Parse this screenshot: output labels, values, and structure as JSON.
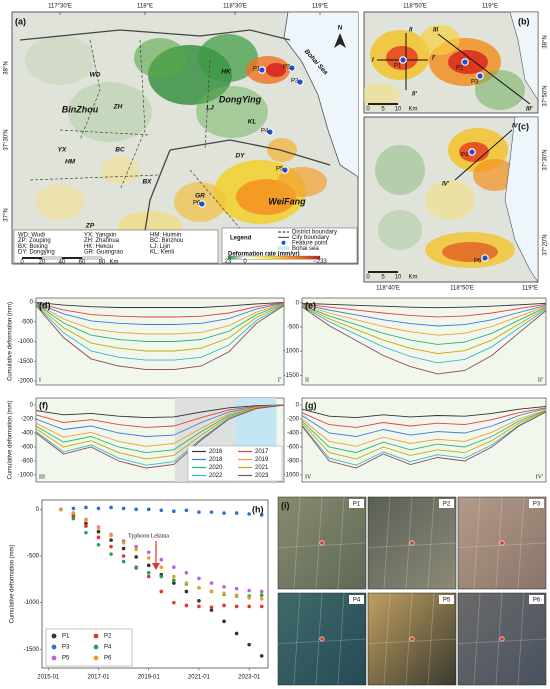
{
  "map_a": {
    "label": "(a)",
    "lon_labels": [
      "117°30'E",
      "118°E",
      "118°30'E",
      "119°E"
    ],
    "lat_labels": [
      "38°N",
      "37°30'N",
      "37°N"
    ],
    "north": "N",
    "places": [
      "WD",
      "BinZhou",
      "ZH",
      "YX",
      "BC",
      "HM",
      "BX",
      "ZP",
      "GR",
      "WeiFang",
      "DongYing",
      "HK",
      "LJ",
      "KL",
      "DY",
      "Bohai Sea"
    ],
    "points": [
      "P1",
      "P2",
      "P3",
      "P4",
      "P5",
      "P6"
    ],
    "abbreviations": [
      "WD: Wudi",
      "YX: Yangxin",
      "HM: Huimin",
      "ZP: Zouping",
      "ZH: Zhanhua",
      "BC: Binzhou",
      "BX: Boxing",
      "HK: Hekou",
      "LJ: Lijin",
      "DY: Dongying",
      "GR: Guangrao",
      "KL: Kenli"
    ],
    "scale": [
      "0",
      "20",
      "40",
      "60",
      "80",
      "Km"
    ],
    "legend": {
      "title": "Legend",
      "items": [
        "District boundary",
        "City boundary",
        "Feature point",
        "Bohai sea"
      ],
      "colorbar_title": "Deformation rate (mm/yr)",
      "colorbar_labels": [
        "23",
        "0",
        "−233"
      ]
    }
  },
  "map_b": {
    "label": "(b)",
    "lon_labels": [
      "118°50'E",
      "119°E"
    ],
    "lat_labels": [
      "38°N",
      "37°50'N"
    ],
    "profile_labels": [
      "I",
      "I'",
      "II",
      "II'",
      "III",
      "III'"
    ],
    "points": [
      "P1",
      "P2",
      "P3"
    ],
    "scale": [
      "0",
      "5",
      "10",
      "Km"
    ]
  },
  "map_c": {
    "label": "(c)",
    "lon_labels": [
      "118°40'E",
      "118°50'E",
      "119°E"
    ],
    "lat_labels": [
      "37°30'N",
      "37°20'N"
    ],
    "profile_labels": [
      "IV",
      "IV'"
    ],
    "points": [
      "P4",
      "P6"
    ],
    "scale": [
      "0",
      "5",
      "10",
      "Km"
    ]
  },
  "chart_data": [
    {
      "type": "line",
      "label": "(d)",
      "y_label": "Cumulative deformation (mm)",
      "categories": [
        "I",
        null,
        null,
        null,
        null,
        null,
        null,
        null,
        null,
        "I'"
      ],
      "ylim": [
        -2100,
        100
      ],
      "yticks": [
        0,
        -500,
        -1000,
        -1500,
        -2000
      ],
      "series": [
        {
          "color": "#333333",
          "values": [
            -10,
            -80,
            -120,
            -140,
            -140,
            -140,
            -140,
            -100,
            -50,
            -10
          ]
        },
        {
          "color": "#e8413a",
          "values": [
            -20,
            -200,
            -320,
            -360,
            -380,
            -380,
            -360,
            -280,
            -120,
            -20
          ]
        },
        {
          "color": "#3a7bd5",
          "values": [
            -30,
            -300,
            -480,
            -540,
            -570,
            -570,
            -540,
            -420,
            -180,
            -30
          ]
        },
        {
          "color": "#f0a030",
          "values": [
            -40,
            -430,
            -680,
            -770,
            -810,
            -810,
            -770,
            -600,
            -260,
            -40
          ]
        },
        {
          "color": "#2bb673",
          "values": [
            -50,
            -530,
            -840,
            -950,
            -1000,
            -1000,
            -950,
            -740,
            -320,
            -50
          ]
        },
        {
          "color": "#c9a800",
          "values": [
            -70,
            -650,
            -1040,
            -1170,
            -1240,
            -1240,
            -1170,
            -910,
            -390,
            -70
          ]
        },
        {
          "color": "#3bb8c8",
          "values": [
            -80,
            -780,
            -1240,
            -1400,
            -1470,
            -1470,
            -1400,
            -1090,
            -470,
            -80
          ]
        },
        {
          "color": "#8b4a5a",
          "values": [
            -90,
            -900,
            -1440,
            -1620,
            -1710,
            -1710,
            -1620,
            -1260,
            -540,
            -90
          ]
        }
      ]
    },
    {
      "type": "line",
      "label": "(e)",
      "categories": [
        "II",
        null,
        null,
        null,
        null,
        null,
        null,
        null,
        null,
        "II'"
      ],
      "ylim": [
        -1700,
        100
      ],
      "yticks": [
        0,
        -500,
        -1000,
        -1500
      ],
      "series": [
        {
          "color": "#333333",
          "values": [
            -10,
            -30,
            -50,
            -70,
            -90,
            -100,
            -90,
            -70,
            -40,
            -10
          ]
        },
        {
          "color": "#e8413a",
          "values": [
            -20,
            -90,
            -150,
            -210,
            -260,
            -290,
            -270,
            -210,
            -120,
            -30
          ]
        },
        {
          "color": "#3a7bd5",
          "values": [
            -30,
            -150,
            -250,
            -350,
            -430,
            -480,
            -450,
            -350,
            -200,
            -50
          ]
        },
        {
          "color": "#f0a030",
          "values": [
            -40,
            -210,
            -350,
            -490,
            -600,
            -670,
            -630,
            -490,
            -280,
            -70
          ]
        },
        {
          "color": "#2bb673",
          "values": [
            -50,
            -270,
            -450,
            -630,
            -770,
            -860,
            -810,
            -630,
            -360,
            -90
          ]
        },
        {
          "color": "#c9a800",
          "values": [
            -60,
            -330,
            -550,
            -770,
            -940,
            -1050,
            -990,
            -770,
            -440,
            -110
          ]
        },
        {
          "color": "#3bb8c8",
          "values": [
            -70,
            -390,
            -650,
            -910,
            -1110,
            -1240,
            -1170,
            -910,
            -520,
            -130
          ]
        },
        {
          "color": "#8b4a5a",
          "values": [
            -80,
            -470,
            -780,
            -1090,
            -1320,
            -1470,
            -1400,
            -1090,
            -620,
            -160
          ]
        }
      ]
    },
    {
      "type": "line",
      "label": "(f)",
      "y_label": "Cumulative deformation (mm)",
      "categories": [
        "III",
        null,
        null,
        null,
        null,
        null,
        null,
        null,
        null,
        "III'"
      ],
      "ylim": [
        -1100,
        100
      ],
      "yticks": [
        0,
        -200,
        -400,
        -600,
        -800,
        -1000
      ],
      "legend": "lower right",
      "series": [
        {
          "name": "2016",
          "color": "#333333",
          "values": [
            -80,
            -140,
            -120,
            -160,
            -180,
            -170,
            -100,
            -40,
            -10,
            0
          ]
        },
        {
          "name": "2017",
          "color": "#e8413a",
          "values": [
            -140,
            -250,
            -210,
            -280,
            -320,
            -300,
            -180,
            -70,
            -20,
            0
          ]
        },
        {
          "name": "2018",
          "color": "#3a7bd5",
          "values": [
            -200,
            -350,
            -300,
            -400,
            -450,
            -430,
            -250,
            -100,
            -30,
            0
          ]
        },
        {
          "name": "2019",
          "color": "#f0a030",
          "values": [
            -260,
            -460,
            -390,
            -520,
            -590,
            -550,
            -330,
            -130,
            -30,
            0
          ]
        },
        {
          "name": "2020",
          "color": "#2bb673",
          "values": [
            -300,
            -530,
            -450,
            -600,
            -680,
            -640,
            -380,
            -150,
            -40,
            0
          ]
        },
        {
          "name": "2021",
          "color": "#c9a800",
          "values": [
            -340,
            -600,
            -510,
            -680,
            -770,
            -720,
            -430,
            -170,
            -40,
            0
          ]
        },
        {
          "name": "2022",
          "color": "#3bb8c8",
          "values": [
            -380,
            -670,
            -570,
            -760,
            -860,
            -810,
            -480,
            -190,
            -50,
            0
          ]
        },
        {
          "name": "2023",
          "color": "#8b4a5a",
          "values": [
            -400,
            -700,
            -600,
            -800,
            -900,
            -850,
            -500,
            -200,
            -50,
            0
          ]
        }
      ]
    },
    {
      "type": "line",
      "label": "(g)",
      "categories": [
        "IV",
        null,
        null,
        null,
        null,
        null,
        null,
        null,
        null,
        "IV'"
      ],
      "ylim": [
        -1100,
        100
      ],
      "yticks": [
        0,
        -200,
        -400,
        -600,
        -800,
        -1000
      ],
      "series": [
        {
          "color": "#333333",
          "values": [
            -60,
            -160,
            -180,
            -140,
            -170,
            -150,
            -160,
            -120,
            -60,
            -20
          ]
        },
        {
          "color": "#e8413a",
          "values": [
            -110,
            -280,
            -320,
            -250,
            -300,
            -260,
            -280,
            -210,
            -110,
            -40
          ]
        },
        {
          "color": "#3a7bd5",
          "values": [
            -150,
            -400,
            -450,
            -350,
            -430,
            -380,
            -400,
            -300,
            -150,
            -50
          ]
        },
        {
          "color": "#f0a030",
          "values": [
            -200,
            -520,
            -590,
            -460,
            -550,
            -490,
            -520,
            -390,
            -200,
            -70
          ]
        },
        {
          "color": "#2bb673",
          "values": [
            -230,
            -600,
            -680,
            -530,
            -640,
            -560,
            -600,
            -450,
            -230,
            -80
          ]
        },
        {
          "color": "#c9a800",
          "values": [
            -260,
            -680,
            -770,
            -600,
            -720,
            -640,
            -680,
            -510,
            -260,
            -90
          ]
        },
        {
          "color": "#3bb8c8",
          "values": [
            -290,
            -760,
            -860,
            -670,
            -810,
            -710,
            -760,
            -570,
            -290,
            -100
          ]
        },
        {
          "color": "#8b4a5a",
          "values": [
            -300,
            -800,
            -900,
            -700,
            -850,
            -750,
            -800,
            -600,
            -300,
            -100
          ]
        }
      ]
    },
    {
      "type": "scatter",
      "label": "(h)",
      "y_label": "Cumulative deformation (mm)",
      "annotation": "Typhoon Lekima",
      "legend": "lower left",
      "x": [
        "2015-07",
        "2016-01",
        "2016-07",
        "2017-01",
        "2017-07",
        "2018-01",
        "2018-07",
        "2019-01",
        "2019-07",
        "2020-01",
        "2020-07",
        "2021-01",
        "2021-07",
        "2022-01",
        "2022-07",
        "2023-01",
        "2023-07"
      ],
      "xlim": [
        "2014-10",
        "2023-10"
      ],
      "xticks": [
        "2015-01",
        "2017-01",
        "2019-01",
        "2021-01",
        "2023-01"
      ],
      "ylim": [
        -1700,
        100
      ],
      "yticks": [
        0,
        -500,
        -1000,
        -1500
      ],
      "series": [
        {
          "name": "P1",
          "color": "#333333",
          "values": [
            0,
            -60,
            -150,
            -240,
            -330,
            -420,
            -510,
            -600,
            -700,
            -790,
            -880,
            -980,
            -1080,
            -1200,
            -1330,
            -1450,
            -1570
          ]
        },
        {
          "name": "P2",
          "color": "#e8322b",
          "values": [
            0,
            -80,
            -180,
            -300,
            -400,
            -500,
            -620,
            -720,
            -880,
            -1000,
            -1030,
            -1040,
            -1050,
            -1030,
            -1040,
            -1040,
            -1040
          ]
        },
        {
          "name": "P3",
          "color": "#2a6fd6",
          "values": [
            0,
            10,
            20,
            10,
            20,
            10,
            0,
            0,
            -10,
            -20,
            -10,
            -30,
            -30,
            -40,
            -40,
            -50,
            -60
          ]
        },
        {
          "name": "P4",
          "color": "#1fa65a",
          "values": [
            0,
            -100,
            -250,
            -380,
            -480,
            -560,
            -630,
            -680,
            -720,
            -760,
            -800,
            -840,
            -880,
            -910,
            -930,
            -930,
            -920
          ]
        },
        {
          "name": "P5",
          "color": "#c060e0",
          "values": [
            0,
            -40,
            -110,
            -190,
            -270,
            -340,
            -400,
            -460,
            -540,
            -620,
            -680,
            -740,
            -790,
            -830,
            -850,
            -870,
            -880
          ]
        },
        {
          "name": "P6",
          "color": "#f0a020",
          "values": [
            0,
            -40,
            -120,
            -200,
            -280,
            -360,
            -430,
            -520,
            -620,
            -720,
            -790,
            -840,
            -880,
            -900,
            -920,
            -950,
            -960
          ]
        }
      ]
    }
  ],
  "photos": {
    "label": "(i)",
    "tiles": [
      "P1",
      "P2",
      "P3",
      "P4",
      "P5",
      "P6"
    ]
  }
}
